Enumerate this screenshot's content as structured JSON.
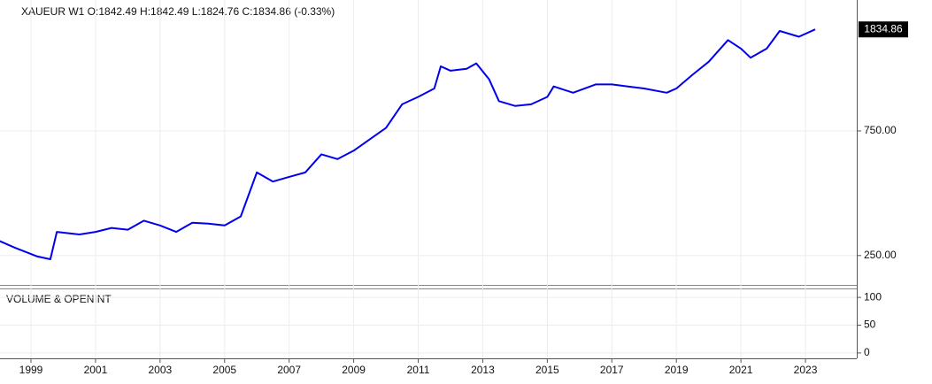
{
  "chart_data": [
    {
      "type": "line",
      "title": "XAUEUR  W1  O:1842.49  H:1842.49  L:1824.76  C:1834.86  (-0.33%)",
      "last_price_label": "1834.86",
      "log_scale": true,
      "grid": true,
      "x": [
        1998.0,
        1998.5,
        1999.2,
        1999.6,
        1999.8,
        2000.5,
        2001,
        2001.5,
        2002,
        2002.5,
        2003,
        2003.5,
        2004,
        2004.5,
        2005,
        2005.5,
        2006,
        2006.5,
        2007,
        2007.5,
        2008,
        2008.5,
        2009,
        2009.5,
        2010,
        2010.5,
        2011,
        2011.5,
        2011.7,
        2012,
        2012.5,
        2012.8,
        2013.2,
        2013.5,
        2014,
        2014.5,
        2015,
        2015.2,
        2015.8,
        2016.5,
        2017,
        2017.5,
        2018,
        2018.7,
        2019,
        2019.5,
        2020,
        2020.6,
        2021,
        2021.3,
        2021.8,
        2022.2,
        2022.8,
        2023.3
      ],
      "series": [
        {
          "name": "XAUEUR",
          "color": "#0000ee",
          "values": [
            285,
            268,
            248,
            242,
            308,
            301,
            308,
            319,
            314,
            340,
            326,
            308,
            334,
            331,
            326,
            353,
            520,
            480,
            500,
            520,
            610,
            585,
            630,
            697,
            770,
            948,
            1012,
            1090,
            1325,
            1275,
            1297,
            1360,
            1180,
            975,
            935,
            948,
            1012,
            1110,
            1050,
            1130,
            1130,
            1110,
            1090,
            1050,
            1090,
            1230,
            1380,
            1670,
            1550,
            1430,
            1550,
            1810,
            1720,
            1834.86
          ]
        }
      ],
      "xlim": [
        1998.04,
        2024.59
      ],
      "ylim": [
        193,
        2378
      ],
      "yticks": [
        {
          "value": 250,
          "label": "250.00"
        },
        {
          "value": 750,
          "label": "750.00"
        }
      ],
      "xticks": [
        1999,
        2001,
        2003,
        2005,
        2007,
        2009,
        2011,
        2013,
        2015,
        2017,
        2019,
        2021,
        2023
      ]
    },
    {
      "type": "volume",
      "title": "VOLUME & OPENINT",
      "ylim": [
        -9.7,
        114.5
      ],
      "yticks": [
        0,
        50,
        100
      ]
    }
  ]
}
